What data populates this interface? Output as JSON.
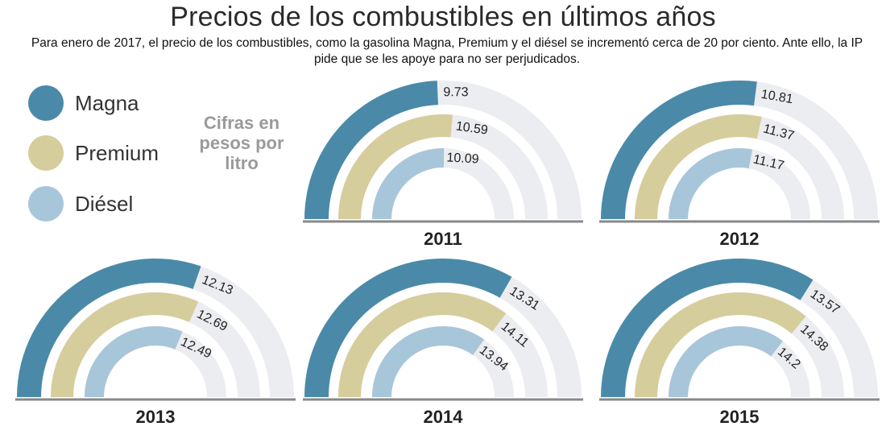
{
  "title": "Precios de los combustibles en últimos años",
  "subtitle": "Para enero de 2017, el precio de los combustibles, como la gasolina Magna, Premium y el diésel se incrementó cerca de 20 por ciento. Ante ello, la IP pide que se les apoye para no ser perjudicados.",
  "units_note": "Cifras en pesos por litro",
  "colors": {
    "magna": "#4a8aa8",
    "premium": "#d6cd9c",
    "diesel": "#a8c6da",
    "track": "#ecedf0",
    "baseline": "#888888"
  },
  "legend": [
    {
      "name": "Magna",
      "color": "#4a8aa8"
    },
    {
      "name": "Premium",
      "color": "#d6cd9c"
    },
    {
      "name": "Diésel",
      "color": "#a8c6da"
    }
  ],
  "chart_data": {
    "type": "radial-bar",
    "title": "Precios de los combustibles en últimos años",
    "unit": "pesos por litro",
    "axis_max": 20,
    "series_order": [
      "Magna",
      "Premium",
      "Diésel"
    ],
    "years": [
      {
        "year": "2011",
        "Magna": 9.73,
        "Premium": 10.59,
        "Diésel": 10.09
      },
      {
        "year": "2012",
        "Magna": 10.81,
        "Premium": 11.37,
        "Diésel": 11.17
      },
      {
        "year": "2013",
        "Magna": 12.13,
        "Premium": 12.69,
        "Diésel": 12.49
      },
      {
        "year": "2014",
        "Magna": 13.31,
        "Premium": 14.11,
        "Diésel": 13.94
      },
      {
        "year": "2015",
        "Magna": 13.57,
        "Premium": 14.38,
        "Diésel": 14.2
      }
    ]
  }
}
